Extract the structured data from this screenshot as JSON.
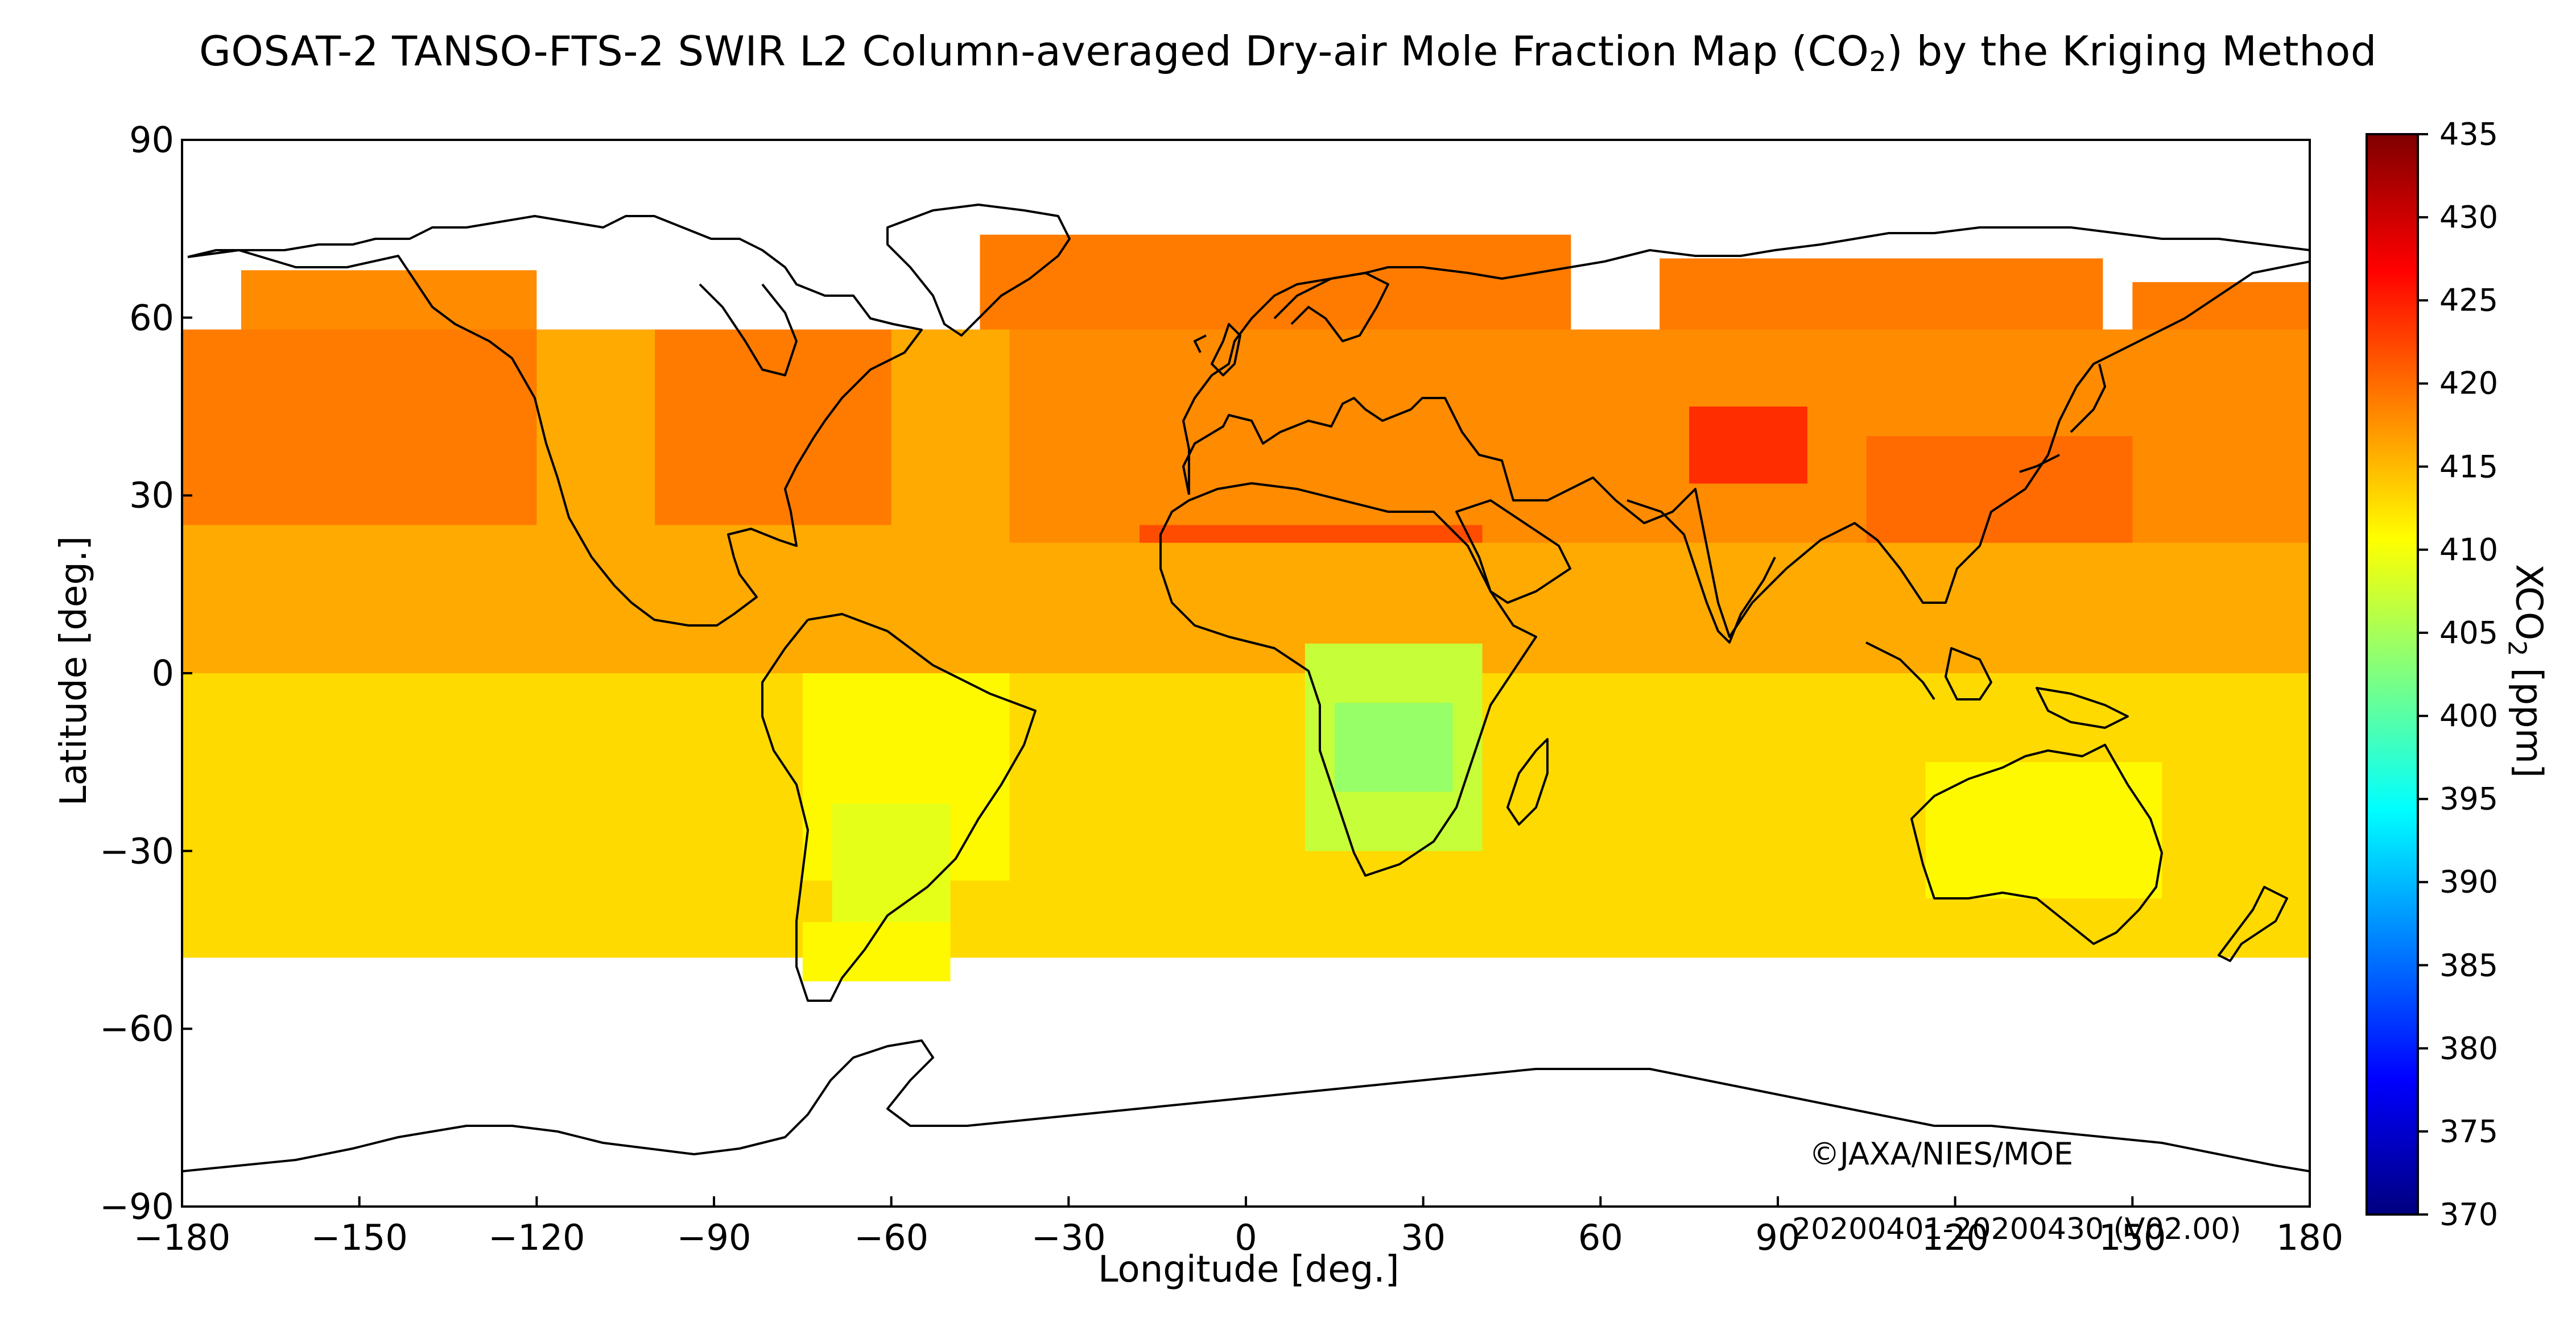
{
  "title": {
    "prefix": "GOSAT-2 TANSO-FTS-2 SWIR L2 Column-averaged Dry-air Mole Fraction Map (CO",
    "sub": "2",
    "suffix": ") by the Kriging Method"
  },
  "chart_data": {
    "type": "heatmap",
    "projection": "equirectangular",
    "x_axis": {
      "label": "Longitude [deg.]",
      "range": [
        -180,
        180
      ],
      "ticks": [
        -180,
        -150,
        -120,
        -90,
        -60,
        -30,
        0,
        30,
        60,
        90,
        120,
        150,
        180
      ],
      "tick_labels": [
        "−180",
        "−150",
        "−120",
        "−90",
        "−60",
        "−30",
        "0",
        "30",
        "60",
        "90",
        "120",
        "150",
        "180"
      ]
    },
    "y_axis": {
      "label": "Latitude [deg.]",
      "range": [
        -90,
        90
      ],
      "ticks": [
        90,
        60,
        30,
        0,
        -30,
        -60,
        -90
      ],
      "tick_labels": [
        "90",
        "60",
        "30",
        "0",
        "−30",
        "−60",
        "−90"
      ]
    },
    "colorbar": {
      "label_prefix": "XCO",
      "label_sub": "2",
      "label_suffix": " [ppm]",
      "range": [
        370,
        435
      ],
      "ticks": [
        435,
        430,
        425,
        420,
        415,
        410,
        405,
        400,
        395,
        390,
        385,
        380,
        375,
        370
      ],
      "colormap": "jet"
    },
    "regions": [
      {
        "lat": [
          -48,
          58
        ],
        "lon": [
          -180,
          180
        ],
        "xco2": 416
      },
      {
        "lat": [
          58,
          68
        ],
        "lon": [
          -170,
          -120
        ],
        "xco2": 418
      },
      {
        "lat": [
          58,
          74
        ],
        "lon": [
          -45,
          55
        ],
        "xco2": 419
      },
      {
        "lat": [
          58,
          70
        ],
        "lon": [
          70,
          145
        ],
        "xco2": 419
      },
      {
        "lat": [
          55,
          66
        ],
        "lon": [
          150,
          180
        ],
        "xco2": 419
      },
      {
        "lat": [
          25,
          58
        ],
        "lon": [
          -180,
          -120
        ],
        "xco2": 419
      },
      {
        "lat": [
          25,
          58
        ],
        "lon": [
          -100,
          -60
        ],
        "xco2": 419
      },
      {
        "lat": [
          22,
          58
        ],
        "lon": [
          -40,
          180
        ],
        "xco2": 418
      },
      {
        "lat": [
          10,
          25
        ],
        "lon": [
          -18,
          40
        ],
        "xco2": 422
      },
      {
        "lat": [
          32,
          45
        ],
        "lon": [
          75,
          95
        ],
        "xco2": 424
      },
      {
        "lat": [
          20,
          40
        ],
        "lon": [
          105,
          150
        ],
        "xco2": 420
      },
      {
        "lat": [
          0,
          22
        ],
        "lon": [
          -180,
          180
        ],
        "xco2": 416
      },
      {
        "lat": [
          -48,
          0
        ],
        "lon": [
          -180,
          180
        ],
        "xco2": 413
      },
      {
        "lat": [
          -35,
          0
        ],
        "lon": [
          -75,
          -40
        ],
        "xco2": 411
      },
      {
        "lat": [
          -45,
          -22
        ],
        "lon": [
          -70,
          -50
        ],
        "xco2": 409
      },
      {
        "lat": [
          -30,
          5
        ],
        "lon": [
          10,
          40
        ],
        "xco2": 407
      },
      {
        "lat": [
          -20,
          -5
        ],
        "lon": [
          15,
          35
        ],
        "xco2": 404
      },
      {
        "lat": [
          -38,
          -15
        ],
        "lon": [
          115,
          155
        ],
        "xco2": 411
      },
      {
        "lat": [
          -52,
          -42
        ],
        "lon": [
          -75,
          -50
        ],
        "xco2": 411
      }
    ]
  },
  "copyright": "©JAXA/NIES/MOE",
  "period": "20200401-20200430 (V02.00)",
  "colors": {
    "jet": [
      "#00007f",
      "#0000ff",
      "#007fff",
      "#00ffff",
      "#7fff7f",
      "#ffff00",
      "#ff7f00",
      "#ff0000",
      "#7f0000"
    ],
    "coastline": "#000000",
    "no_data": "#ffffff"
  }
}
